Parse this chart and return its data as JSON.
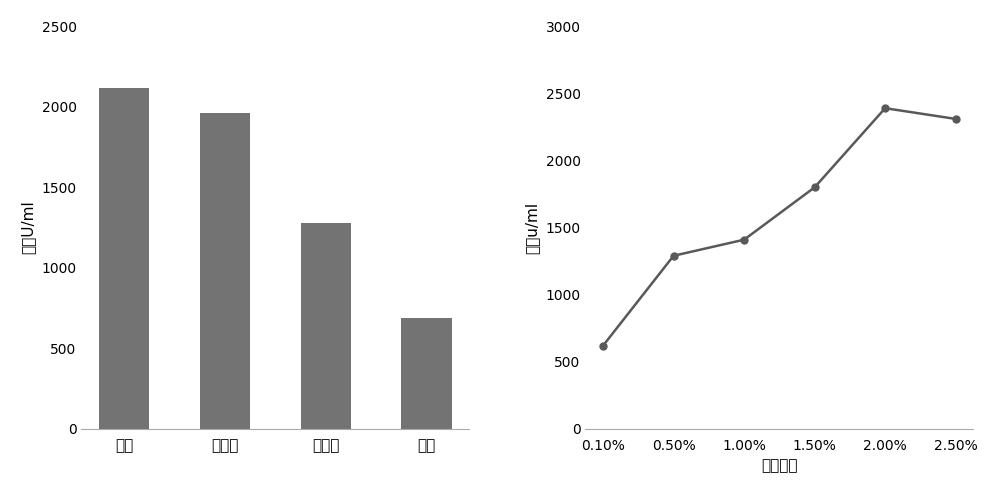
{
  "bar_categories": [
    "淡粉",
    "环糊精",
    "葡萄糖",
    "蔗糖"
  ],
  "bar_values": [
    2120,
    1960,
    1280,
    690
  ],
  "bar_color": "#737373",
  "bar_ylabel": "酶活U/ml",
  "bar_ylim": [
    0,
    2500
  ],
  "bar_yticks": [
    0,
    500,
    1000,
    1500,
    2000,
    2500
  ],
  "line_x_labels": [
    "0.10%",
    "0.50%",
    "1.00%",
    "1.50%",
    "2.00%",
    "2.50%"
  ],
  "line_y_values": [
    620,
    1290,
    1410,
    1800,
    2390,
    2310
  ],
  "line_color": "#595959",
  "line_ylabel": "酶活u/ml",
  "line_xlabel": "淡粉含量",
  "line_ylim": [
    0,
    3000
  ],
  "line_yticks": [
    0,
    500,
    1000,
    1500,
    2000,
    2500,
    3000
  ],
  "background_color": "#ffffff",
  "fig_width": 10.0,
  "fig_height": 4.94
}
